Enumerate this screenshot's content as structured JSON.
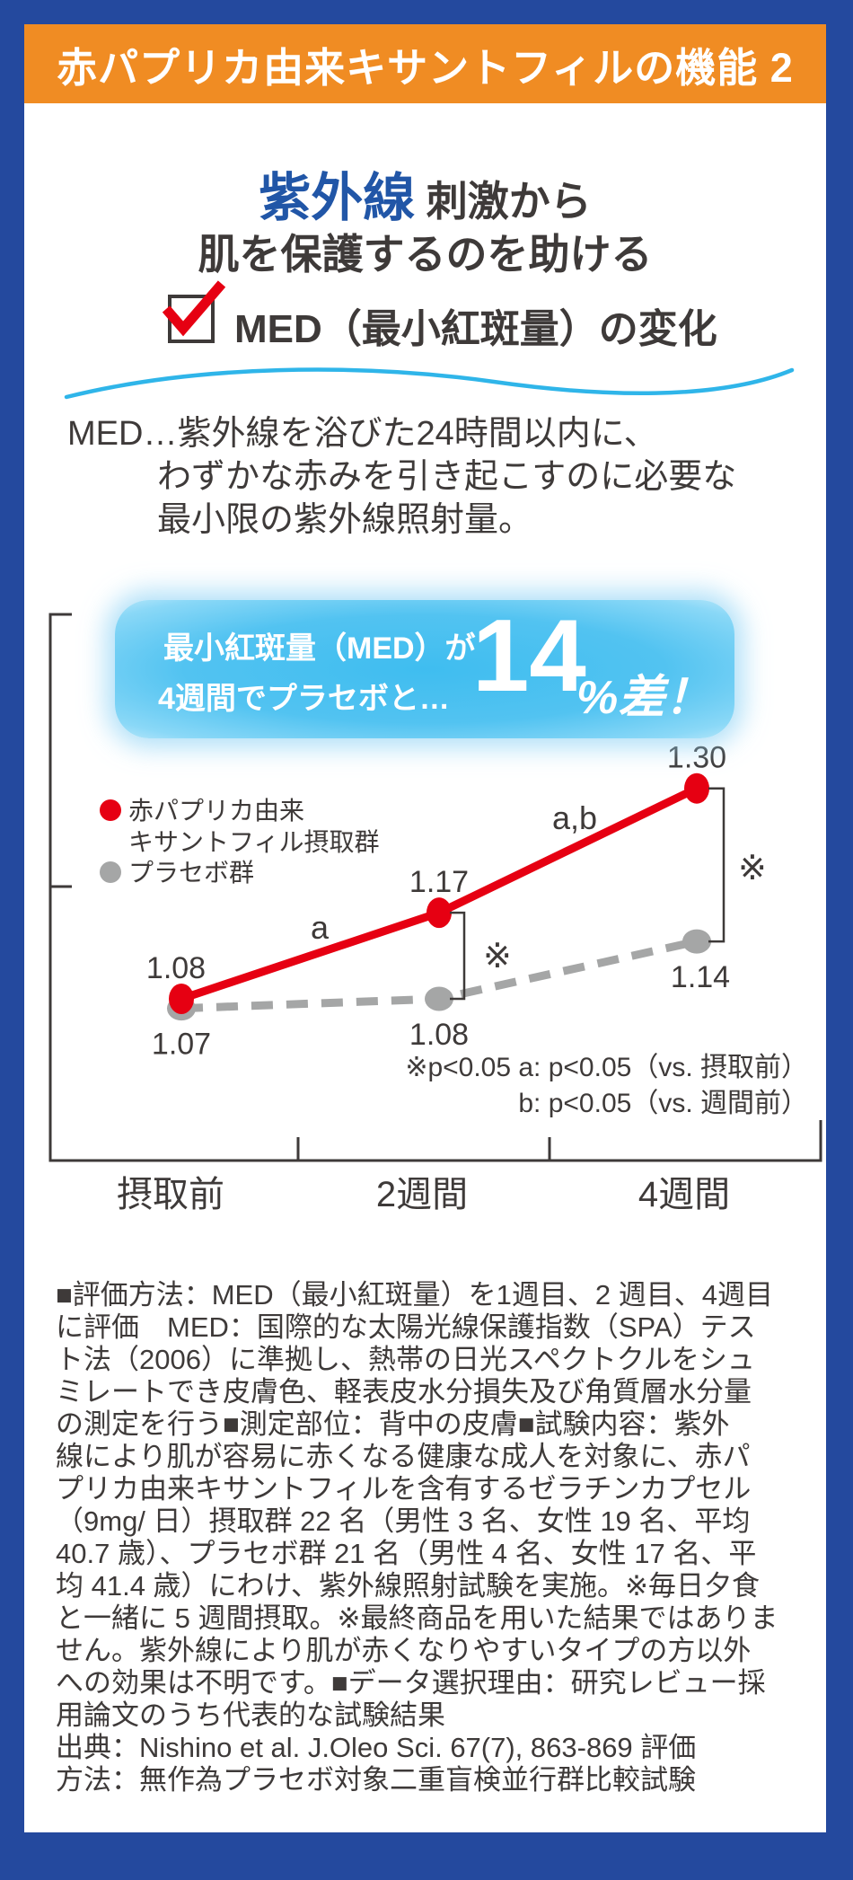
{
  "colors": {
    "frame_blue": "#24499e",
    "header_orange": "#f08c23",
    "title_blue": "#2156a7",
    "text_dark": "#3e3a39",
    "accent_red": "#e60012",
    "placebo_gray": "#a5a6a6",
    "callout_blue": "#52c3f1",
    "wave_blue": "#2fb5e9"
  },
  "header": {
    "title": "赤パプリカ由来キサントフィルの機能 2"
  },
  "title": {
    "highlight": "紫外線",
    "rest": "刺激から",
    "line2": "肌を保護するのを助ける"
  },
  "checkbox_heading": {
    "label": "MED（最小紅斑量）の変化"
  },
  "med_definition": {
    "line1": "MED…紫外線を浴びた24時間以内に、",
    "line2": "わずかな赤みを引き起こすのに必要な",
    "line3": "最小限の紫外線照射量。"
  },
  "callout": {
    "line1": "最小紅斑量（MED）が",
    "line2": "4週間でプラセボと…",
    "big_number": "14",
    "suffix": "%差！"
  },
  "chart_data": {
    "type": "line",
    "categories": [
      "摂取前",
      "2週間",
      "4週間"
    ],
    "series": [
      {
        "name": "プラセボ群",
        "legend_lines": [
          "プラセボ群"
        ],
        "color": "#a5a6a6",
        "style": "dashed",
        "values": [
          1.07,
          1.08,
          1.14
        ],
        "labels": [
          "1.07",
          "1.08",
          "1.14"
        ],
        "label_side": "below"
      },
      {
        "name": "赤パプリカ由来キサントフィル摂取群",
        "legend_lines": [
          "赤パプリカ由来",
          "キサントフィル摂取群"
        ],
        "color": "#e60012",
        "style": "solid",
        "values": [
          1.08,
          1.17,
          1.3
        ],
        "labels": [
          "1.08",
          "1.17",
          "1.30"
        ],
        "label_side": "above"
      }
    ],
    "segment_annotations": [
      "a",
      "a,b"
    ],
    "bracket_annotations": [
      "※",
      "※"
    ],
    "footnotes": [
      "※p<0.05 a: p<0.05（vs. 摂取前）",
      "b: p<0.05（vs. 週間前）"
    ],
    "y_axis": {
      "labels_visible": false,
      "tick_count": 2
    },
    "legend_position": "inside-left",
    "grid": false
  },
  "methodology": {
    "lines": [
      "■評価方法：MED（最小紅斑量）を1週目、2 週目、4週目",
      "に評価　MED：国際的な太陽光線保護指数（SPA）テス",
      "ト法（2006）に準拠し、熱帯の日光スペクトクルをシュ",
      "ミレートでき皮膚色、軽表皮水分損失及び角質層水分量",
      "の測定を行う■測定部位：背中の皮膚■試験内容：紫外",
      "線により肌が容易に赤くなる健康な成人を対象に、赤パ",
      "プリカ由来キサントフィルを含有するゼラチンカプセル",
      "（9mg/ 日）摂取群 22 名（男性 3 名、女性 19 名、平均",
      "40.7 歳）、プラセボ群 21 名（男性 4 名、女性 17 名、平",
      "均 41.4 歳）にわけ、紫外線照射試験を実施。※毎日夕食",
      "と一緒に 5 週間摂取。※最終商品を用いた結果ではありま",
      "せん。紫外線により肌が赤くなりやすいタイプの方以外",
      "への効果は不明です。■データ選択理由：研究レビュー採",
      "用論文のうち代表的な試験結果",
      "出典：Nishino et al. J.Oleo Sci. 67(7), 863-869  評価",
      "方法：無作為プラセボ対象二重盲検並行群比較試験"
    ]
  }
}
